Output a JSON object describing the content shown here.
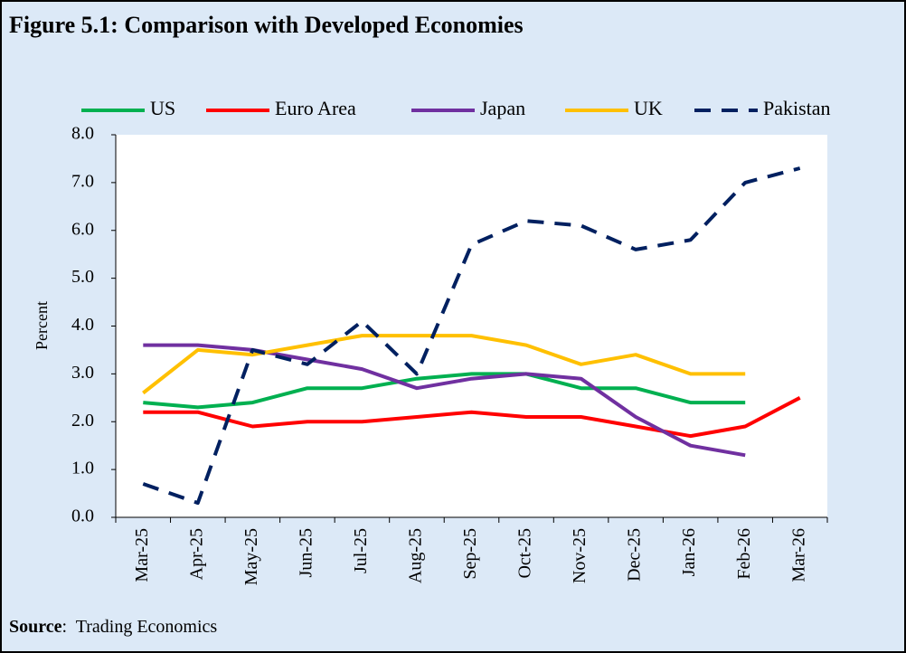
{
  "chart_data": {
    "type": "line",
    "title": "Figure 5.1: Comparison with Developed Economies",
    "y_label": "Percent",
    "source_label": "Source",
    "source_text": ":  Trading Economics",
    "categories": [
      "Mar-25",
      "Apr-25",
      "May-25",
      "Jun-25",
      "Jul-25",
      "Aug-25",
      "Sep-25",
      "Oct-25",
      "Nov-25",
      "Dec-25",
      "Jan-26",
      "Feb-26",
      "Mar-26"
    ],
    "series": [
      {
        "name": "US",
        "color": "#00b050",
        "dashed": false,
        "values": [
          2.4,
          2.3,
          2.4,
          2.7,
          2.7,
          2.9,
          3.0,
          3.0,
          2.7,
          2.7,
          2.4,
          2.4,
          null
        ]
      },
      {
        "name": "Euro Area",
        "color": "#ff0000",
        "dashed": false,
        "values": [
          2.2,
          2.2,
          1.9,
          2.0,
          2.0,
          2.1,
          2.2,
          2.1,
          2.1,
          1.9,
          1.7,
          1.9,
          2.5
        ]
      },
      {
        "name": "Japan",
        "color": "#7030a0",
        "dashed": false,
        "values": [
          3.6,
          3.6,
          3.5,
          3.3,
          3.1,
          2.7,
          2.9,
          3.0,
          2.9,
          2.1,
          1.5,
          1.3,
          null
        ]
      },
      {
        "name": "UK",
        "color": "#ffc000",
        "dashed": false,
        "values": [
          2.6,
          3.5,
          3.4,
          3.6,
          3.8,
          3.8,
          3.8,
          3.6,
          3.2,
          3.4,
          3.0,
          3.0,
          null
        ]
      },
      {
        "name": "Pakistan",
        "color": "#002060",
        "dashed": true,
        "values": [
          0.7,
          0.3,
          3.5,
          3.2,
          4.1,
          3.0,
          5.7,
          6.2,
          6.1,
          5.6,
          5.8,
          7.0,
          7.3
        ]
      }
    ],
    "ylim": [
      0,
      8
    ],
    "yticks": [
      {
        "value": 0,
        "label": "0.0"
      },
      {
        "value": 1,
        "label": "1.0"
      },
      {
        "value": 2,
        "label": "2.0"
      },
      {
        "value": 3,
        "label": "3.0"
      },
      {
        "value": 4,
        "label": "4.0"
      },
      {
        "value": 5,
        "label": "5.0"
      },
      {
        "value": 6,
        "label": "6.0"
      },
      {
        "value": 7,
        "label": "7.0"
      },
      {
        "value": 8,
        "label": "8.0"
      }
    ],
    "grid": false,
    "legend": "top"
  }
}
